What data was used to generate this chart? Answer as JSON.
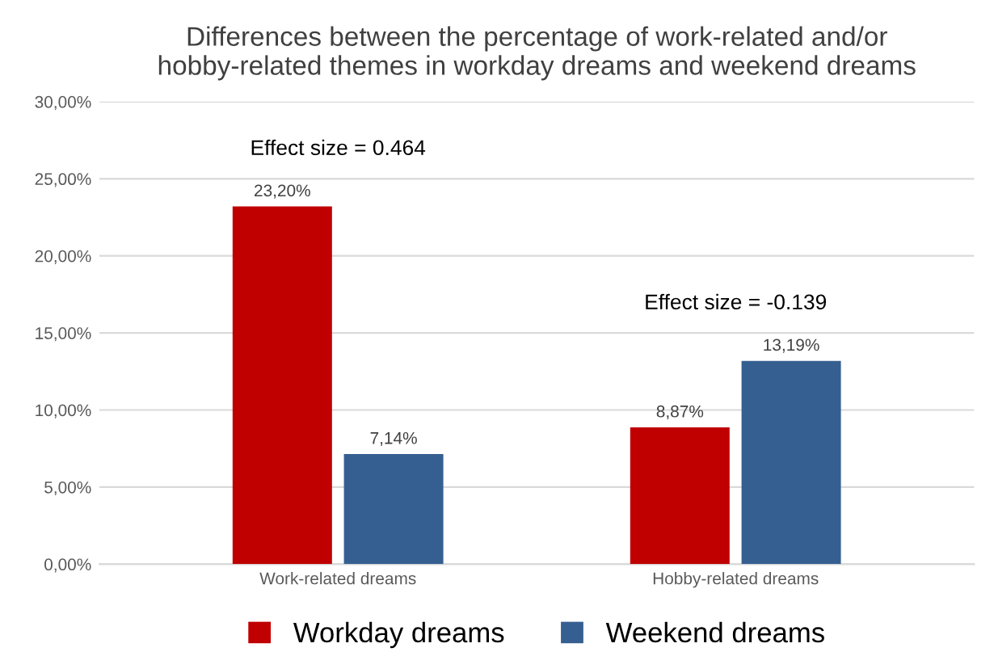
{
  "chart_data": {
    "type": "bar",
    "title": "Differences between the percentage of work-related and/or\nhobby-related themes in workday dreams and weekend dreams",
    "categories": [
      "Work-related dreams",
      "Hobby-related dreams"
    ],
    "series": [
      {
        "name": "Workday dreams",
        "color": "#c00000",
        "values": [
          23.2,
          8.87
        ],
        "value_labels": [
          "23,20%",
          "8,87%"
        ]
      },
      {
        "name": "Weekend dreams",
        "color": "#365f91",
        "values": [
          7.14,
          13.19
        ],
        "value_labels": [
          "7,14%",
          "13,19%"
        ]
      }
    ],
    "ylim": [
      0,
      30
    ],
    "yticks": [
      {
        "value": 0,
        "label": "0,00%"
      },
      {
        "value": 5,
        "label": "5,00%"
      },
      {
        "value": 10,
        "label": "10,00%"
      },
      {
        "value": 15,
        "label": "15,00%"
      },
      {
        "value": 20,
        "label": "20,00%"
      },
      {
        "value": 25,
        "label": "25,00%"
      },
      {
        "value": 30,
        "label": "30,00%"
      }
    ],
    "annotations": [
      "Effect size = 0.464",
      "Effect size = -0.139"
    ],
    "grid": "y",
    "legend": "bottom"
  }
}
